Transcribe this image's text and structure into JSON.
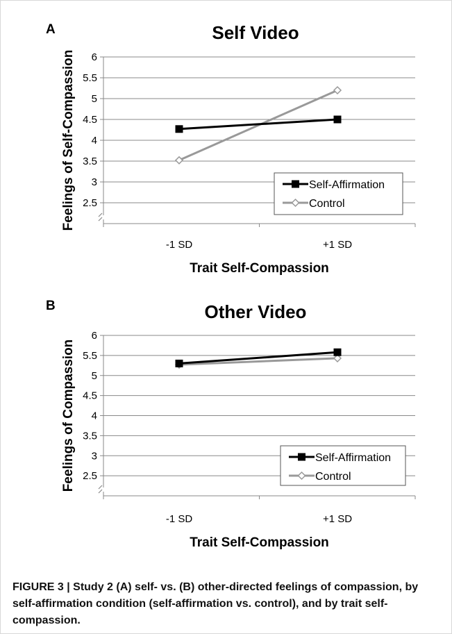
{
  "colors": {
    "self_affirmation": "#000000",
    "control": "#999999",
    "grid": "#888888",
    "axis": "#888888"
  },
  "caption": {
    "label": "FIGURE 3 | ",
    "text": "Study 2 (A) self- vs. (B) other-directed feelings of compassion, by self-affirmation condition (self-affirmation vs. control), and by trait self-compassion."
  },
  "chart_data": [
    {
      "panel": "A",
      "type": "line",
      "title": "Self Video",
      "xlabel": "Trait Self-Compassion",
      "ylabel": "Feelings of Self-Compassion",
      "categories": [
        "-1 SD",
        "+1 SD"
      ],
      "yticks": [
        "2.5",
        "3",
        "3.5",
        "4",
        "4.5",
        "5",
        "5.5",
        "6"
      ],
      "ylim": [
        2,
        6
      ],
      "axis_break": true,
      "grid": true,
      "legend_position": "bottom-right",
      "series": [
        {
          "name": "Self-Affirmation",
          "marker": "filled-square",
          "values": [
            4.27,
            4.5
          ]
        },
        {
          "name": "Control",
          "marker": "open-diamond",
          "values": [
            3.52,
            5.2
          ]
        }
      ]
    },
    {
      "panel": "B",
      "type": "line",
      "title": "Other Video",
      "xlabel": "Trait Self-Compassion",
      "ylabel": "Feelings of Compassion",
      "categories": [
        "-1 SD",
        "+1 SD"
      ],
      "yticks": [
        "2.5",
        "3",
        "3.5",
        "4",
        "4.5",
        "5",
        "5.5",
        "6"
      ],
      "ylim": [
        2,
        6
      ],
      "axis_break": true,
      "grid": true,
      "legend_position": "bottom-right",
      "series": [
        {
          "name": "Self-Affirmation",
          "marker": "filled-square",
          "values": [
            5.3,
            5.58
          ]
        },
        {
          "name": "Control",
          "marker": "open-diamond",
          "values": [
            5.27,
            5.43
          ]
        }
      ]
    }
  ]
}
